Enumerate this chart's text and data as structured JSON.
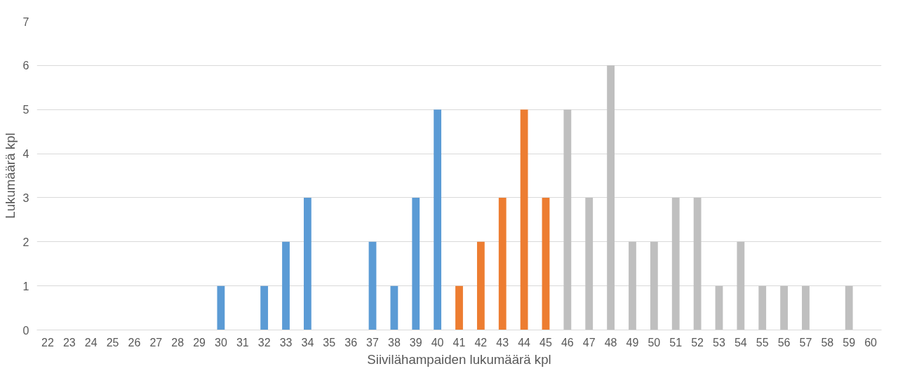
{
  "chart_data": {
    "type": "bar",
    "xlabel": "Siivilähampaiden lukumäärä kpl",
    "ylabel": "Lukumäärä kpl",
    "categories": [
      "22",
      "23",
      "24",
      "25",
      "26",
      "27",
      "28",
      "29",
      "30",
      "31",
      "32",
      "33",
      "34",
      "35",
      "36",
      "37",
      "38",
      "39",
      "40",
      "41",
      "42",
      "43",
      "44",
      "45",
      "46",
      "47",
      "48",
      "49",
      "50",
      "51",
      "52",
      "53",
      "54",
      "55",
      "56",
      "57",
      "58",
      "59",
      "60"
    ],
    "values": [
      0,
      0,
      0,
      0,
      0,
      0,
      0,
      0,
      1,
      0,
      1,
      2,
      3,
      0,
      0,
      2,
      1,
      3,
      5,
      1,
      2,
      3,
      5,
      3,
      5,
      3,
      6,
      2,
      2,
      3,
      3,
      1,
      2,
      1,
      1,
      1,
      0,
      1,
      0
    ],
    "colors": [
      "#5b9bd5",
      "#5b9bd5",
      "#5b9bd5",
      "#5b9bd5",
      "#5b9bd5",
      "#5b9bd5",
      "#5b9bd5",
      "#5b9bd5",
      "#5b9bd5",
      "#5b9bd5",
      "#5b9bd5",
      "#5b9bd5",
      "#5b9bd5",
      "#5b9bd5",
      "#5b9bd5",
      "#5b9bd5",
      "#5b9bd5",
      "#5b9bd5",
      "#5b9bd5",
      "#ed7d31",
      "#ed7d31",
      "#ed7d31",
      "#ed7d31",
      "#ed7d31",
      "#bfbfbf",
      "#bfbfbf",
      "#bfbfbf",
      "#bfbfbf",
      "#bfbfbf",
      "#bfbfbf",
      "#bfbfbf",
      "#bfbfbf",
      "#bfbfbf",
      "#bfbfbf",
      "#bfbfbf",
      "#bfbfbf",
      "#bfbfbf",
      "#bfbfbf",
      "#bfbfbf"
    ],
    "ylim": [
      0,
      7
    ],
    "yticks": [
      0,
      1,
      2,
      3,
      4,
      5,
      6,
      7
    ],
    "grid": "y"
  }
}
